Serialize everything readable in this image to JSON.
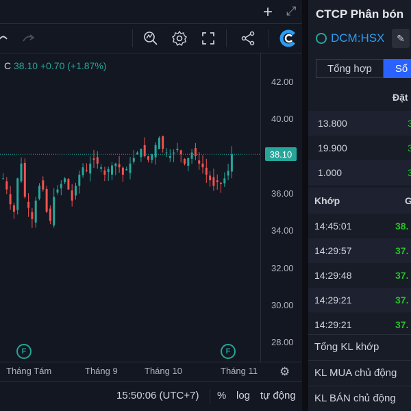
{
  "chart": {
    "legend_symbol": "C",
    "legend_value": "38.10 +0.70 (+1.87%)",
    "current_price": "38.10",
    "y_ticks": [
      "42.00",
      "40.00",
      "38.00",
      "36.00",
      "34.00",
      "32.00",
      "30.00",
      "28.00"
    ],
    "x_ticks": [
      "Tháng Tám",
      "Tháng 9",
      "Tháng 10",
      "Tháng 11"
    ],
    "flag_label": "F",
    "colors": {
      "up": "#26a69a",
      "down": "#ef5350",
      "background": "#131722"
    }
  },
  "toolbar": {
    "undo_icon": "undo-icon",
    "redo_icon": "redo-icon",
    "indicator_icon": "indicators-icon",
    "settings_icon": "gear-icon",
    "fullscreen_icon": "fullscreen-icon",
    "share_icon": "share-icon",
    "brand_icon": "brand-logo-icon"
  },
  "bottombar": {
    "time": "15:50:06 (UTC+7)",
    "percent": "%",
    "log": "log",
    "auto": "tự động"
  },
  "panel": {
    "company": "CTCP Phân bón",
    "ticker": "DCM:HSX",
    "tabs": [
      "Tổng hợp",
      "Sổ l"
    ],
    "order_header": "Đặt",
    "order_rows": [
      {
        "vol": "13.800",
        "price": "3"
      },
      {
        "vol": "19.900",
        "price": "3"
      },
      {
        "vol": "1.000",
        "price": "3"
      }
    ],
    "match_header_left": "Khớp",
    "match_header_right": "G",
    "match_rows": [
      {
        "time": "14:45:01",
        "price": "38."
      },
      {
        "time": "14:29:57",
        "price": "37."
      },
      {
        "time": "14:29:48",
        "price": "37."
      },
      {
        "time": "14:29:21",
        "price": "37."
      },
      {
        "time": "14:29:21",
        "price": "37."
      }
    ],
    "summary": [
      "Tổng KL khớp",
      "KL MUA chủ động",
      "KL BÁN chủ động"
    ]
  }
}
